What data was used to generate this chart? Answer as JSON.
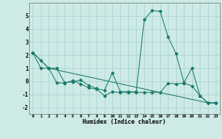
{
  "xlabel": "Humidex (Indice chaleur)",
  "bg_color": "#cdeae6",
  "grid_color": "#aad4d0",
  "line_color": "#1a7a6e",
  "series": [
    {
      "x": [
        0,
        1,
        2,
        3,
        4,
        5,
        6,
        7,
        8,
        9,
        10,
        11,
        12,
        13,
        14,
        15,
        16,
        17,
        18,
        19,
        20,
        21,
        22,
        23
      ],
      "y": [
        2.2,
        1.6,
        1.0,
        1.0,
        -0.1,
        -0.05,
        0.1,
        -0.3,
        -0.55,
        -0.7,
        0.65,
        -0.8,
        -0.8,
        -0.8,
        4.7,
        5.4,
        5.35,
        3.4,
        2.1,
        -0.1,
        1.0,
        -1.1,
        -1.65,
        -1.65
      ]
    },
    {
      "x": [
        0,
        2,
        22,
        23
      ],
      "y": [
        2.2,
        1.0,
        -1.65,
        -1.65
      ]
    },
    {
      "x": [
        0,
        1,
        2,
        3,
        4,
        5,
        6,
        7,
        8,
        9,
        10,
        11,
        12,
        13,
        14,
        15,
        16,
        17,
        18,
        19,
        20,
        21,
        22,
        23
      ],
      "y": [
        2.2,
        1.0,
        1.0,
        -0.1,
        -0.15,
        0.05,
        -0.2,
        -0.5,
        -0.6,
        -1.1,
        -0.8,
        -0.85,
        -0.85,
        -0.85,
        -0.85,
        -0.85,
        -0.85,
        -0.15,
        -0.2,
        -0.15,
        -0.35,
        -1.1,
        -1.65,
        -1.65
      ]
    }
  ],
  "ylim": [
    -2.5,
    6.0
  ],
  "yticks": [
    -2,
    -1,
    0,
    1,
    2,
    3,
    4,
    5
  ],
  "xlim": [
    -0.5,
    23.5
  ],
  "xticks": [
    0,
    1,
    2,
    3,
    4,
    5,
    6,
    7,
    8,
    9,
    10,
    11,
    12,
    13,
    14,
    15,
    16,
    17,
    18,
    19,
    20,
    21,
    22,
    23
  ]
}
